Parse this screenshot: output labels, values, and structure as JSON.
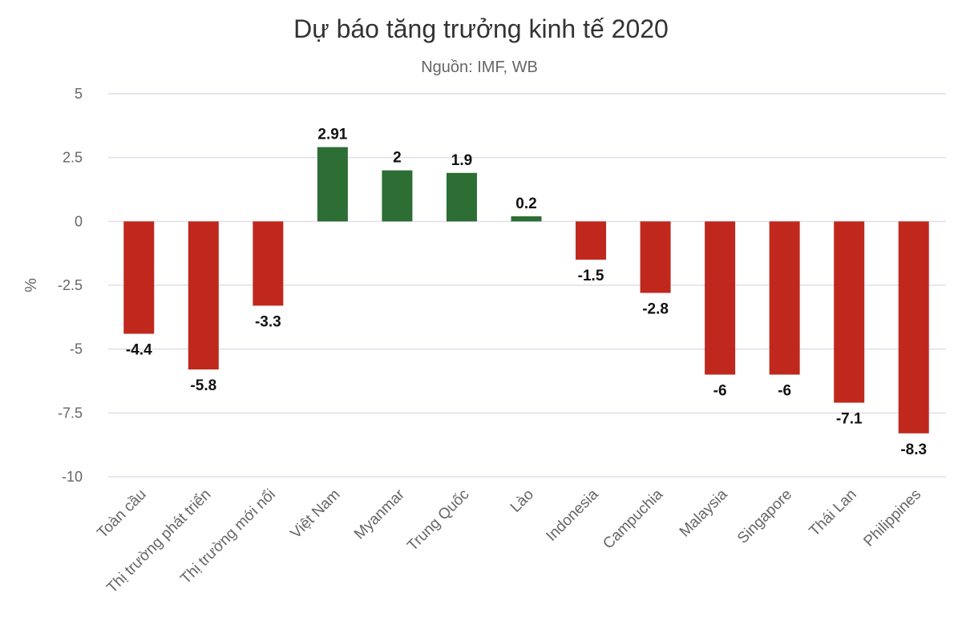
{
  "chart_data": {
    "type": "bar",
    "title": "Dự báo tăng trưởng kinh tế 2020",
    "subtitle": "Nguồn: IMF, WB",
    "xlabel": "",
    "ylabel": "%",
    "ylim": [
      -10,
      5
    ],
    "yticks": [
      5,
      2.5,
      0,
      -2.5,
      -5,
      -7.5,
      -10
    ],
    "ytick_labels": [
      "5",
      "2.5",
      "0",
      "-2.5",
      "-5",
      "-7.5",
      "-10"
    ],
    "grid": true,
    "categories": [
      "Toàn cầu",
      "Thị trường phát triển",
      "Thị trường mới nổi",
      "Việt Nam",
      "Myanmar",
      "Trung Quốc",
      "Lào",
      "Indonesia",
      "Campuchia",
      "Malaysia",
      "Singapore",
      "Thái Lan",
      "Philippines"
    ],
    "values": [
      -4.4,
      -5.8,
      -3.3,
      2.91,
      2,
      1.9,
      0.2,
      -1.5,
      -2.8,
      -6,
      -6,
      -7.1,
      -8.3
    ],
    "colors": {
      "positive": "#2c6e33",
      "negative": "#c0281d",
      "grid": "#e3dde8"
    }
  }
}
